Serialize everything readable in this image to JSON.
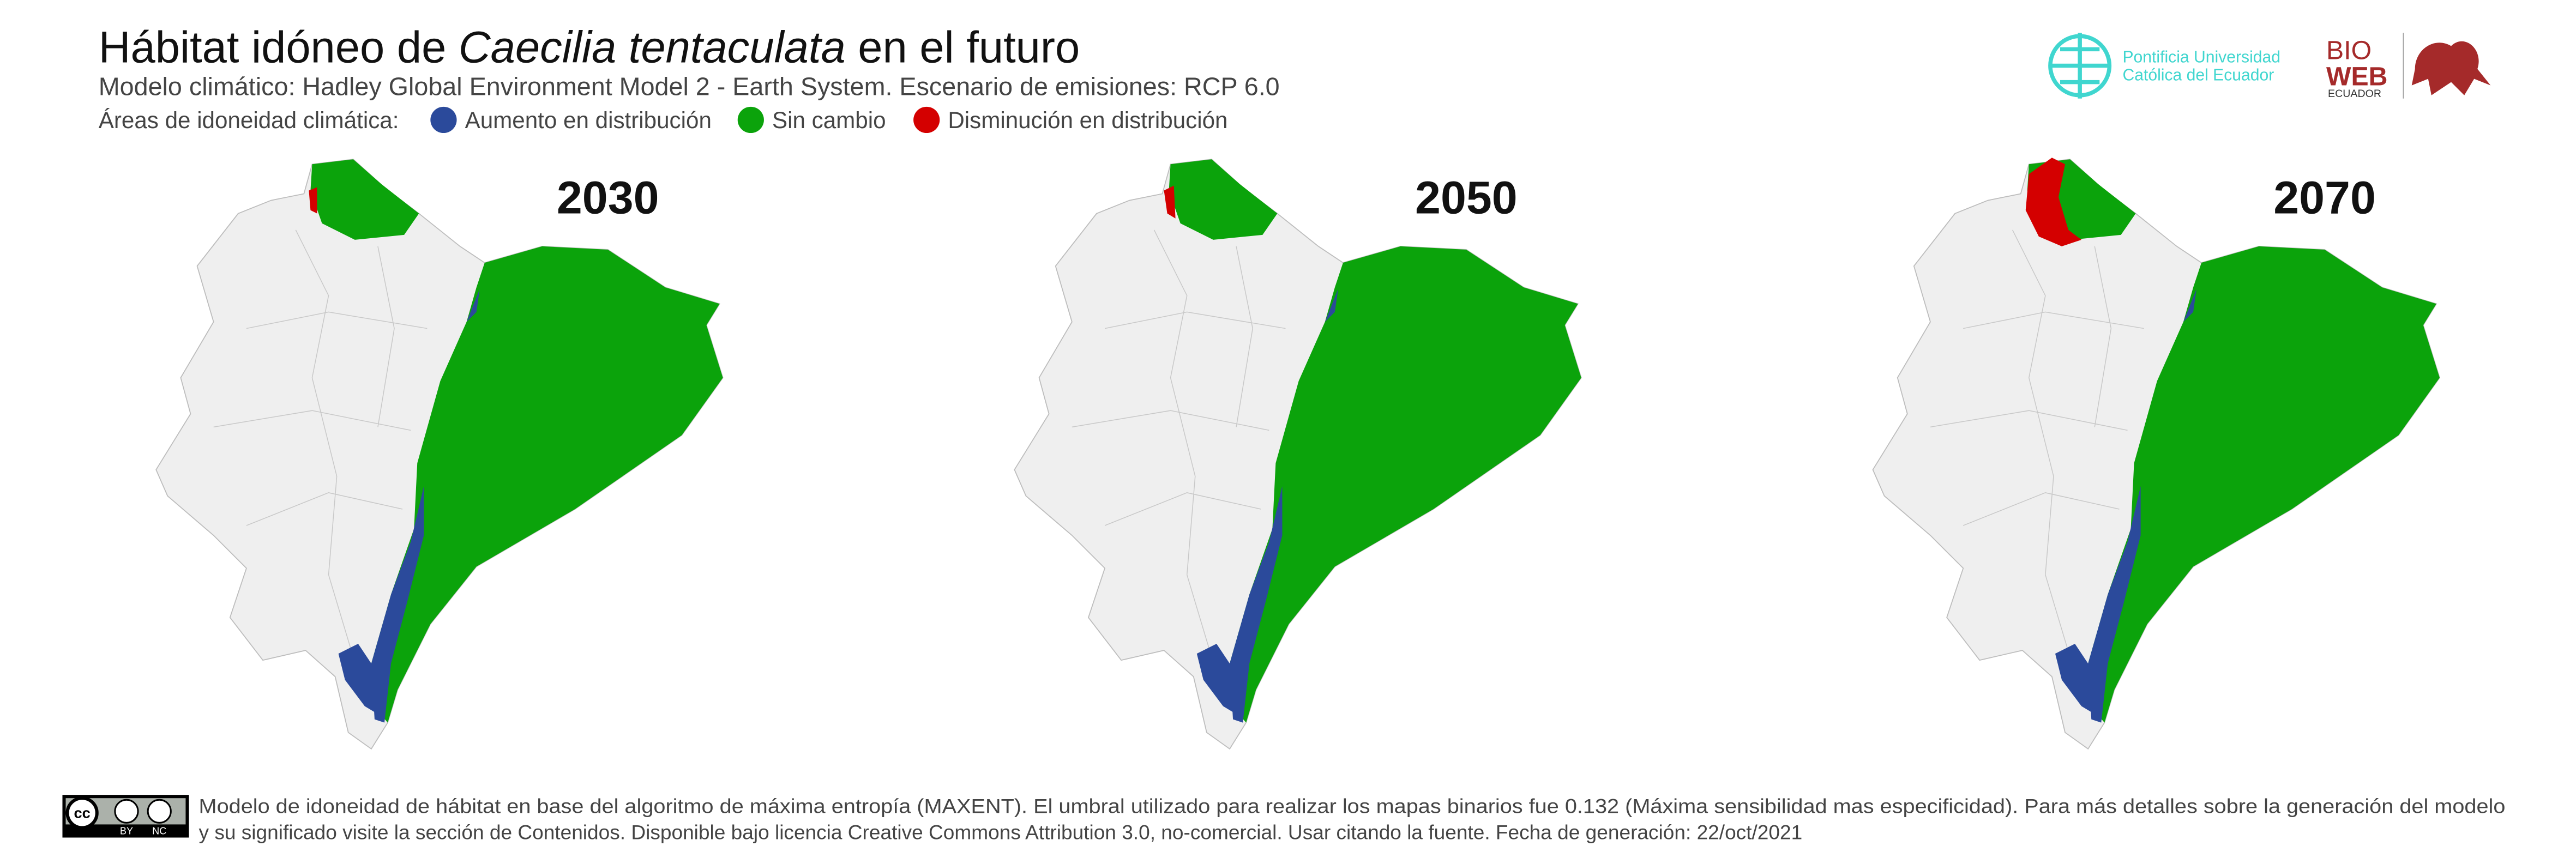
{
  "header": {
    "title_start": "Hábitat idóneo de ",
    "title_species": "Caecilia tentaculata",
    "title_end": " en el futuro",
    "subtitle": "Modelo climático: Hadley Global Environment Model 2 - Earth System. Escenario de emisiones: RCP 6.0"
  },
  "legend": {
    "label": "Áreas de idoneidad climática:",
    "items": [
      {
        "name": "Aumento en distribución",
        "color": "#2b4a9b"
      },
      {
        "name": "Sin cambio",
        "color": "#0ba30b"
      },
      {
        "name": "Disminución en distribución",
        "color": "#d40000"
      }
    ]
  },
  "maps": [
    {
      "year": "2030"
    },
    {
      "year": "2050"
    },
    {
      "year": "2070"
    }
  ],
  "logos": {
    "puce_line1": "Pontificia Universidad",
    "puce_line2": "Católica del Ecuador",
    "bio": "BIO",
    "web": "WEB",
    "ecuador": "ECUADOR"
  },
  "footer": {
    "cc": "cc",
    "by": "BY",
    "nc": "NC",
    "line1": "Modelo de idoneidad de hábitat en base del algoritmo de máxima entropía (MAXENT). El umbral utilizado para realizar los mapas binarios fue 0.132 (Máxima sensibilidad mas especificidad). Para más detalles sobre la generación del modelo",
    "line2": "y su significado visite la sección de Contenidos. Disponible bajo licencia Creative Commons Attribution 3.0, no-comercial. Usar citando la fuente. Fecha de generación: 22/oct/2021"
  }
}
